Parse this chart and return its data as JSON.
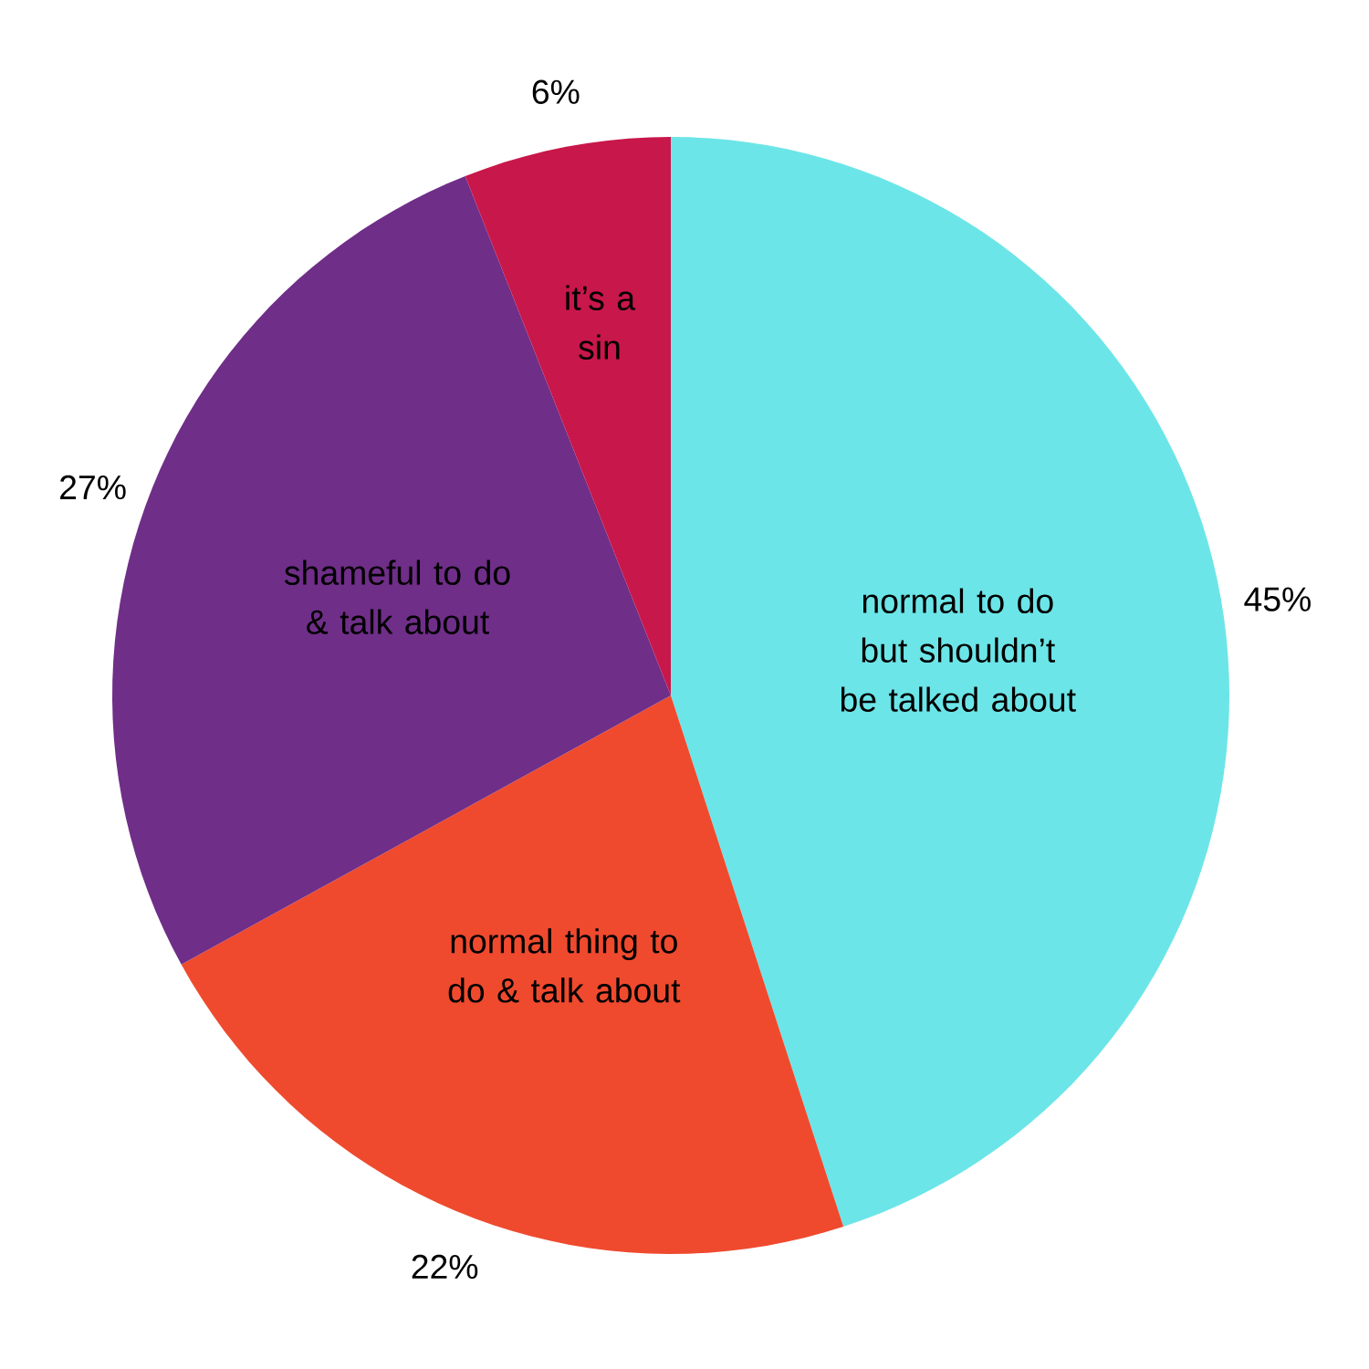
{
  "chart_data": {
    "type": "pie",
    "categories": [
      "normal to do but shouldn’t be talked about",
      "normal thing to do & talk about",
      "shameful to do & talk about",
      "it’s a sin"
    ],
    "values": [
      45,
      22,
      27,
      6
    ],
    "value_labels": [
      "45%",
      "22%",
      "27%",
      "6%"
    ],
    "colors": [
      "#6ce5e8",
      "#ef4a2e",
      "#6f2e88",
      "#c8174a"
    ]
  }
}
